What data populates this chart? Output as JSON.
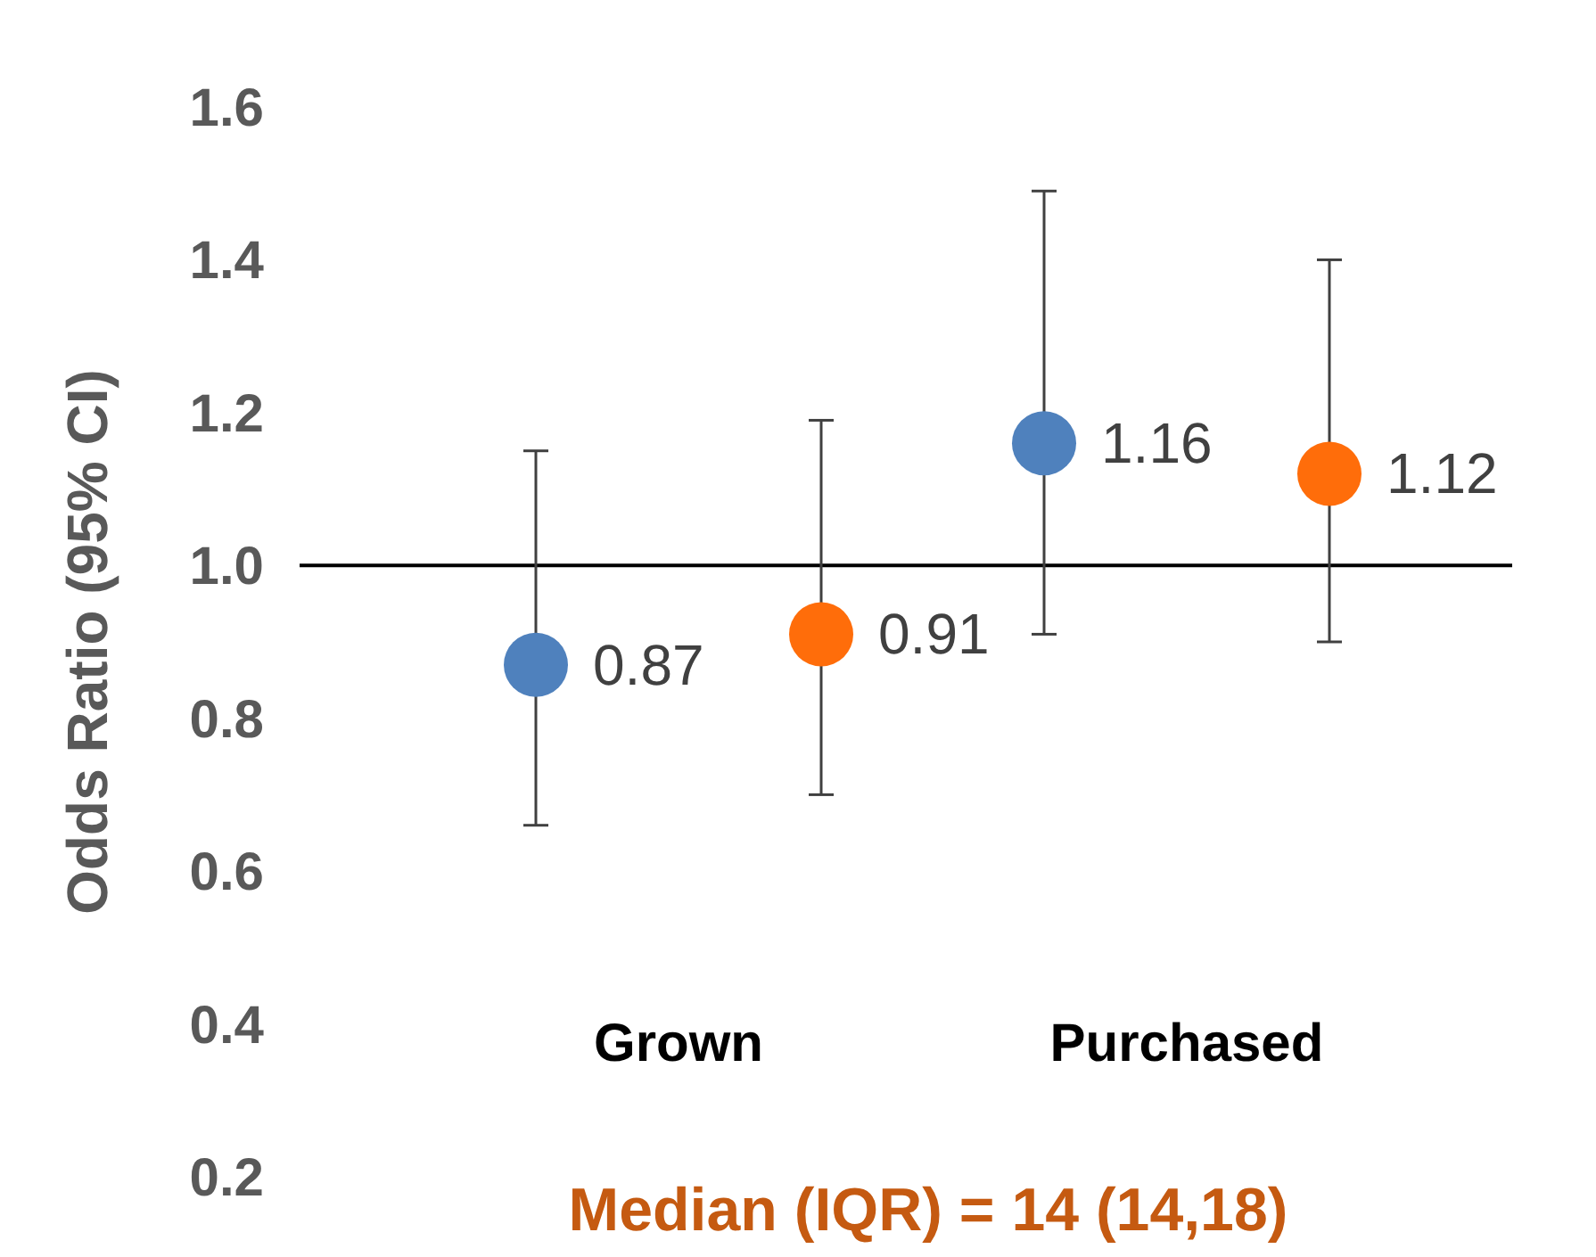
{
  "chart_data": {
    "type": "scatter",
    "ylabel": "Odds Ratio (95% CI)",
    "categories": [
      "Grown",
      "Purchased"
    ],
    "series": [
      {
        "color": "#4f81bd",
        "values": [
          0.87,
          1.16
        ],
        "errors": [
          [
            0.66,
            1.15
          ],
          [
            0.91,
            1.49
          ]
        ]
      },
      {
        "color": "#ff6d0a",
        "values": [
          0.91,
          1.12
        ],
        "errors": [
          [
            0.7,
            1.19
          ],
          [
            0.9,
            1.4
          ]
        ]
      }
    ],
    "ylim": [
      0.2,
      1.6
    ],
    "yticks": [
      0.2,
      0.4,
      0.6,
      0.8,
      {
        "value": 1,
        "label": "1.0"
      },
      1.2,
      1.4,
      1.6
    ],
    "ref_lines": [
      {
        "axis": "y",
        "value": 1.0,
        "color": "#000000"
      }
    ],
    "data_labels": true,
    "marker": "circle",
    "grid": false,
    "annotations": [
      "Median (IQR) = 14 (14,18)"
    ]
  }
}
